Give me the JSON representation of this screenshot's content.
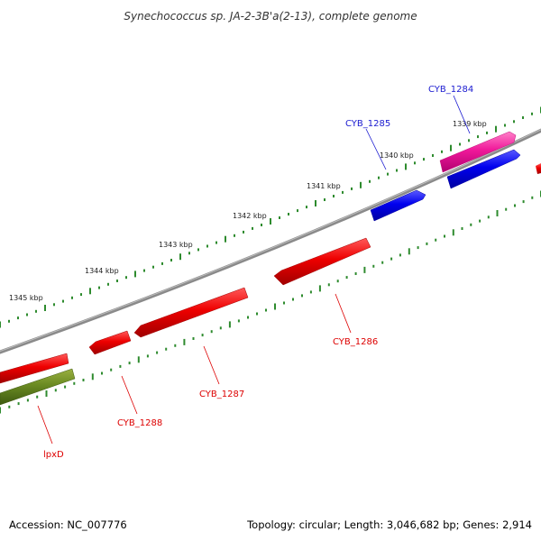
{
  "title": "Synechococcus sp. JA-2-3B'a(2-13), complete genome",
  "footer": {
    "accession": "Accession: NC_007776",
    "summary": "Topology: circular; Length: 3,046,682 bp; Genes: 2,914"
  },
  "ruler": {
    "labels": [
      "1339 kbp",
      "1340 kbp",
      "1341 kbp",
      "1342 kbp",
      "1343 kbp",
      "1344 kbp",
      "1345 kbp"
    ]
  },
  "genes": [
    {
      "name": "CYB_1284",
      "color": "#1010d8",
      "strand": "forward",
      "labeled": true
    },
    {
      "name": "CYB_1285",
      "color": "#1010d8",
      "strand": "forward",
      "labeled": true
    },
    {
      "name": "CYB_1286",
      "color": "#e00000",
      "strand": "reverse",
      "labeled": true
    },
    {
      "name": "CYB_1287",
      "color": "#e00000",
      "strand": "reverse",
      "labeled": true
    },
    {
      "name": "CYB_1288",
      "color": "#e00000",
      "strand": "reverse",
      "labeled": true
    },
    {
      "name": "lpxD",
      "color": "#e00000",
      "strand": "reverse",
      "labeled": true
    },
    {
      "name": "magenta-gene",
      "color": "#e8198a",
      "strand": "forward",
      "labeled": false
    },
    {
      "name": "olive-gene",
      "color": "#5a7a1a",
      "strand": "reverse",
      "labeled": false
    }
  ],
  "colors": {
    "backbone": "#888888",
    "tick": "#2e8b2e",
    "forward_label": "#1a1ad0",
    "reverse_label": "#dd0000"
  }
}
